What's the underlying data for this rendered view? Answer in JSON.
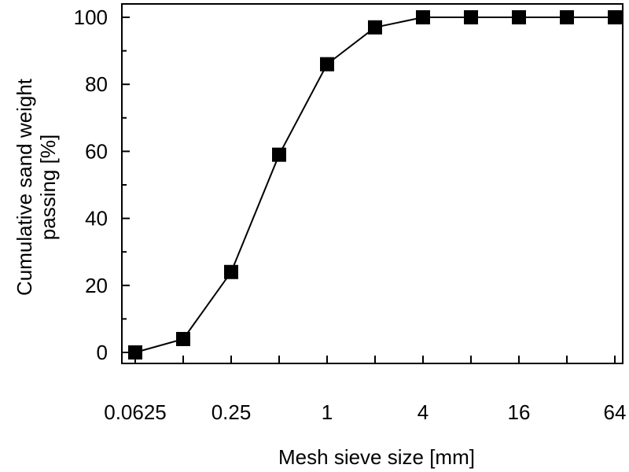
{
  "chart_data": {
    "type": "line",
    "xlabel": "Mesh sieve size [mm]",
    "ylabel_lines": [
      "Cumulative sand weight",
      "passing [%]"
    ],
    "x_scale": "log2",
    "xlim": [
      0.0625,
      64
    ],
    "ylim": [
      0,
      100
    ],
    "x_tick_labels": [
      "0.0625",
      "0.25",
      "1",
      "4",
      "16",
      "64"
    ],
    "y_tick_labels": [
      "0",
      "20",
      "40",
      "60",
      "80",
      "100"
    ],
    "grid": false,
    "series": [
      {
        "marker": "square",
        "color": "#000000",
        "x": [
          0.0625,
          0.125,
          0.25,
          0.5,
          1,
          2,
          4,
          8,
          16,
          32,
          64
        ],
        "y": [
          0,
          4,
          24,
          59,
          86,
          97,
          100,
          100,
          100,
          100,
          100
        ]
      }
    ]
  }
}
